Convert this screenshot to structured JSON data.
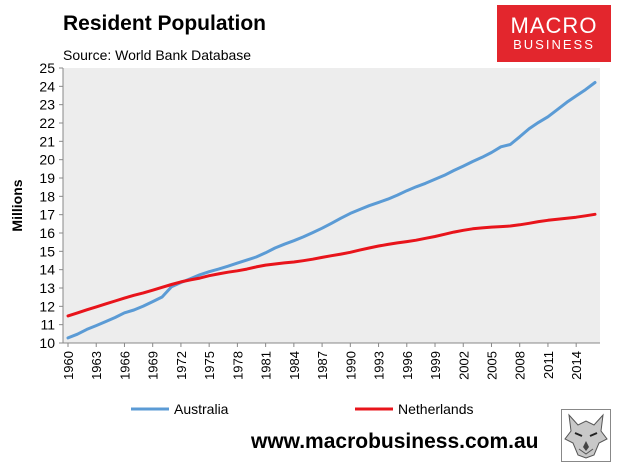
{
  "header": {
    "title": "Resident Population",
    "subtitle": "Source: World Bank Database"
  },
  "logo": {
    "line1": "MACRO",
    "line2": "BUSINESS"
  },
  "footer": {
    "website": "www.macrobusiness.com.au"
  },
  "chart_data": {
    "type": "line",
    "title": "Resident Population",
    "subtitle": "Source: World Bank Database",
    "ylabel": "Millions",
    "xlabel": "",
    "ylim": [
      10,
      25
    ],
    "yticks": [
      10,
      11,
      12,
      13,
      14,
      15,
      16,
      17,
      18,
      19,
      20,
      21,
      22,
      23,
      24,
      25
    ],
    "x": [
      1960,
      1961,
      1962,
      1963,
      1964,
      1965,
      1966,
      1967,
      1968,
      1969,
      1970,
      1971,
      1972,
      1973,
      1974,
      1975,
      1976,
      1977,
      1978,
      1979,
      1980,
      1981,
      1982,
      1983,
      1984,
      1985,
      1986,
      1987,
      1988,
      1989,
      1990,
      1991,
      1992,
      1993,
      1994,
      1995,
      1996,
      1997,
      1998,
      1999,
      2000,
      2001,
      2002,
      2003,
      2004,
      2005,
      2006,
      2007,
      2008,
      2009,
      2010,
      2011,
      2012,
      2013,
      2014,
      2015,
      2016
    ],
    "xticks": [
      "1960",
      "1963",
      "1966",
      "1969",
      "1972",
      "1975",
      "1978",
      "1981",
      "1984",
      "1987",
      "1990",
      "1993",
      "1996",
      "1999",
      "2002",
      "2005",
      "2008",
      "2011",
      "2014"
    ],
    "grid": false,
    "legend_position": "bottom",
    "series": [
      {
        "name": "Australia",
        "color": "#5b9bd5",
        "values": [
          10.28,
          10.48,
          10.74,
          10.95,
          11.17,
          11.39,
          11.65,
          11.8,
          12.01,
          12.26,
          12.51,
          13.07,
          13.3,
          13.5,
          13.72,
          13.89,
          14.03,
          14.19,
          14.36,
          14.52,
          14.69,
          14.92,
          15.18,
          15.39,
          15.58,
          15.79,
          16.02,
          16.26,
          16.53,
          16.81,
          17.07,
          17.28,
          17.49,
          17.67,
          17.85,
          18.07,
          18.31,
          18.52,
          18.71,
          18.93,
          19.15,
          19.41,
          19.65,
          19.9,
          20.13,
          20.39,
          20.7,
          20.83,
          21.25,
          21.69,
          22.03,
          22.34,
          22.73,
          23.13,
          23.48,
          23.82,
          24.21
        ]
      },
      {
        "name": "Netherlands",
        "color": "#e8141b",
        "values": [
          11.48,
          11.64,
          11.81,
          11.97,
          12.13,
          12.29,
          12.45,
          12.6,
          12.73,
          12.88,
          13.04,
          13.19,
          13.33,
          13.44,
          13.54,
          13.67,
          13.77,
          13.86,
          13.94,
          14.03,
          14.15,
          14.25,
          14.31,
          14.37,
          14.42,
          14.49,
          14.57,
          14.67,
          14.76,
          14.85,
          14.95,
          15.07,
          15.18,
          15.29,
          15.38,
          15.46,
          15.53,
          15.61,
          15.71,
          15.81,
          15.93,
          16.05,
          16.15,
          16.23,
          16.28,
          16.32,
          16.35,
          16.38,
          16.45,
          16.53,
          16.62,
          16.69,
          16.75,
          16.8,
          16.86,
          16.94,
          17.02
        ]
      }
    ]
  }
}
